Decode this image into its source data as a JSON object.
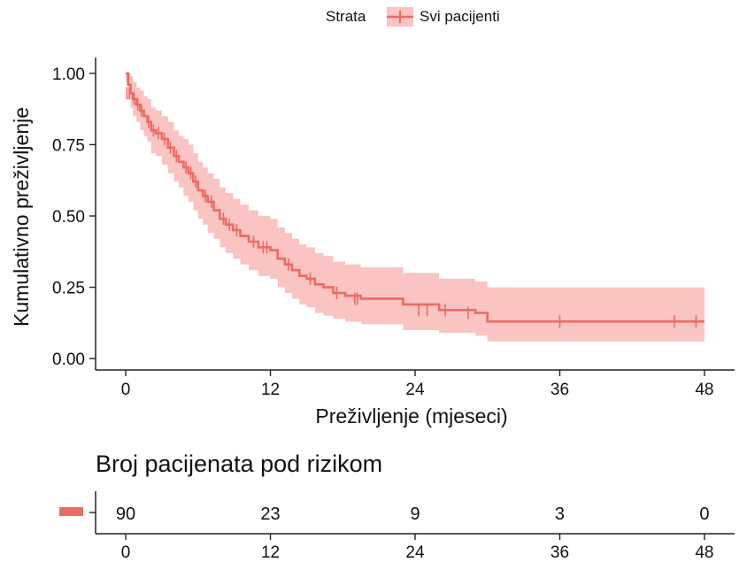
{
  "legend": {
    "title": "Strata",
    "entries": [
      "Svi pacijenti"
    ],
    "position": "top"
  },
  "colors": {
    "series": "#ee6a64",
    "band": "#f9c4c2",
    "axis": "#222222",
    "text": "#111111"
  },
  "chart_data": {
    "type": "line",
    "title": "",
    "xlabel": "Preživljenje (mjeseci)",
    "ylabel": "Kumulativno preživljenje",
    "xlim": [
      -2.5,
      50.5
    ],
    "ylim": [
      -0.04,
      1.04
    ],
    "x_ticks": [
      0,
      12,
      24,
      36,
      48
    ],
    "x_tick_labels": [
      "0",
      "12",
      "24",
      "36",
      "48"
    ],
    "y_ticks": [
      0.0,
      0.25,
      0.5,
      0.75,
      1.0
    ],
    "y_tick_labels": [
      "0.00",
      "0.25",
      "0.50",
      "0.75",
      "1.00"
    ],
    "grid": false,
    "step": true,
    "series": [
      {
        "name": "Svi pacijenti",
        "x": [
          0,
          0.2,
          0.4,
          0.6,
          0.9,
          1.2,
          1.5,
          1.8,
          2.1,
          2.5,
          3.0,
          3.5,
          4.0,
          4.4,
          4.8,
          5.2,
          5.6,
          6.0,
          6.4,
          6.8,
          7.3,
          7.8,
          8.3,
          8.9,
          9.5,
          10.2,
          11.0,
          12.0,
          12.6,
          13.2,
          13.8,
          14.4,
          15.0,
          15.7,
          16.4,
          17.2,
          18.2,
          19.5,
          21.0,
          23.0,
          26.0,
          28.0,
          29.0,
          30.0,
          36.0,
          48.0
        ],
        "y": [
          1.0,
          0.96,
          0.93,
          0.91,
          0.89,
          0.87,
          0.85,
          0.83,
          0.8,
          0.79,
          0.77,
          0.74,
          0.71,
          0.69,
          0.67,
          0.65,
          0.62,
          0.59,
          0.57,
          0.55,
          0.52,
          0.49,
          0.47,
          0.45,
          0.43,
          0.41,
          0.39,
          0.38,
          0.35,
          0.33,
          0.31,
          0.29,
          0.28,
          0.26,
          0.25,
          0.23,
          0.22,
          0.21,
          0.21,
          0.19,
          0.17,
          0.17,
          0.16,
          0.13,
          0.13,
          0.13
        ],
        "lower": [
          0.97,
          0.91,
          0.88,
          0.85,
          0.83,
          0.8,
          0.78,
          0.76,
          0.72,
          0.71,
          0.68,
          0.65,
          0.62,
          0.6,
          0.57,
          0.55,
          0.52,
          0.49,
          0.47,
          0.44,
          0.42,
          0.39,
          0.37,
          0.35,
          0.33,
          0.31,
          0.29,
          0.28,
          0.25,
          0.23,
          0.21,
          0.19,
          0.18,
          0.16,
          0.15,
          0.14,
          0.13,
          0.12,
          0.12,
          0.1,
          0.09,
          0.09,
          0.08,
          0.06,
          0.06,
          0.06
        ],
        "upper": [
          1.0,
          1.0,
          0.99,
          0.97,
          0.95,
          0.94,
          0.92,
          0.91,
          0.88,
          0.87,
          0.85,
          0.83,
          0.8,
          0.78,
          0.77,
          0.75,
          0.72,
          0.69,
          0.67,
          0.65,
          0.63,
          0.6,
          0.58,
          0.56,
          0.54,
          0.52,
          0.5,
          0.49,
          0.46,
          0.44,
          0.42,
          0.4,
          0.39,
          0.37,
          0.36,
          0.34,
          0.33,
          0.32,
          0.32,
          0.3,
          0.28,
          0.28,
          0.27,
          0.25,
          0.25,
          0.25
        ]
      }
    ],
    "censored": [
      {
        "x": 0.1,
        "y": 0.93
      },
      {
        "x": 0.3,
        "y": 0.93
      },
      {
        "x": 0.7,
        "y": 0.91
      },
      {
        "x": 1.0,
        "y": 0.89
      },
      {
        "x": 1.3,
        "y": 0.87
      },
      {
        "x": 1.9,
        "y": 0.83
      },
      {
        "x": 2.3,
        "y": 0.8
      },
      {
        "x": 2.7,
        "y": 0.79
      },
      {
        "x": 3.2,
        "y": 0.77
      },
      {
        "x": 3.7,
        "y": 0.74
      },
      {
        "x": 4.2,
        "y": 0.71
      },
      {
        "x": 5.0,
        "y": 0.67
      },
      {
        "x": 5.4,
        "y": 0.65
      },
      {
        "x": 5.8,
        "y": 0.62
      },
      {
        "x": 6.6,
        "y": 0.57
      },
      {
        "x": 7.1,
        "y": 0.55
      },
      {
        "x": 8.1,
        "y": 0.49
      },
      {
        "x": 8.6,
        "y": 0.47
      },
      {
        "x": 9.2,
        "y": 0.45
      },
      {
        "x": 10.6,
        "y": 0.41
      },
      {
        "x": 11.4,
        "y": 0.39
      },
      {
        "x": 11.7,
        "y": 0.39
      },
      {
        "x": 13.5,
        "y": 0.33
      },
      {
        "x": 15.3,
        "y": 0.28
      },
      {
        "x": 17.5,
        "y": 0.23
      },
      {
        "x": 19.0,
        "y": 0.21
      },
      {
        "x": 19.2,
        "y": 0.21
      },
      {
        "x": 24.3,
        "y": 0.17
      },
      {
        "x": 25.0,
        "y": 0.17
      },
      {
        "x": 26.5,
        "y": 0.17
      },
      {
        "x": 28.4,
        "y": 0.16
      },
      {
        "x": 36.0,
        "y": 0.13
      },
      {
        "x": 45.5,
        "y": 0.13
      },
      {
        "x": 47.3,
        "y": 0.13
      }
    ]
  },
  "risk_table": {
    "title": "Broj pacijenata pod rizikom",
    "times": [
      0,
      12,
      24,
      36,
      48
    ],
    "time_labels": [
      "0",
      "12",
      "24",
      "36",
      "48"
    ],
    "counts": [
      "90",
      "23",
      "9",
      "3",
      "0"
    ]
  }
}
